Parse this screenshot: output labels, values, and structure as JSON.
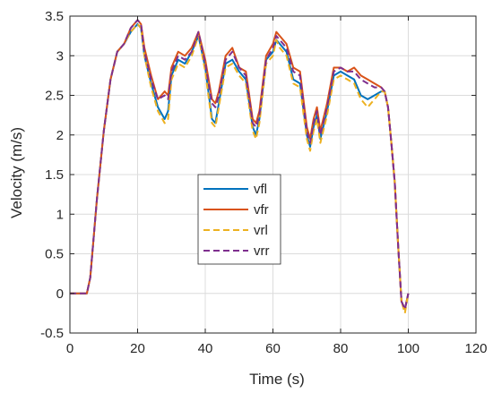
{
  "chart_data": {
    "type": "line",
    "xlabel": "Time (s)",
    "ylabel": "Velocity (m/s)",
    "xlim": [
      0,
      120
    ],
    "ylim": [
      -0.5,
      3.5
    ],
    "xticks": [
      0,
      20,
      40,
      60,
      80,
      100,
      120
    ],
    "yticks": [
      -0.5,
      0,
      0.5,
      1,
      1.5,
      2,
      2.5,
      3,
      3.5
    ],
    "xtick_labels": [
      "0",
      "20",
      "40",
      "60",
      "80",
      "100",
      "120"
    ],
    "ytick_labels": [
      "-0.5",
      "0",
      "0.5",
      "1",
      "1.5",
      "2",
      "2.5",
      "3",
      "3.5"
    ],
    "grid": true,
    "legend_position": "center",
    "x": [
      0,
      5,
      6,
      8,
      10,
      12,
      14,
      16,
      18,
      20,
      21,
      22,
      24,
      26,
      28,
      29,
      30,
      32,
      34,
      36,
      38,
      40,
      42,
      43,
      44,
      46,
      48,
      50,
      52,
      54,
      55,
      56,
      58,
      60,
      61,
      62,
      64,
      66,
      68,
      70,
      71,
      72,
      73,
      74,
      76,
      78,
      80,
      82,
      84,
      86,
      88,
      90,
      92,
      93,
      94,
      95,
      96,
      97,
      98,
      99,
      100
    ],
    "series": [
      {
        "name": "vfl",
        "color": "#0072BD",
        "dash": "solid",
        "values": [
          0,
          0,
          0.2,
          1.2,
          2.05,
          2.7,
          3.05,
          3.15,
          3.3,
          3.4,
          3.35,
          3.0,
          2.65,
          2.35,
          2.2,
          2.3,
          2.75,
          2.95,
          2.9,
          3.05,
          3.25,
          2.85,
          2.2,
          2.15,
          2.4,
          2.9,
          2.95,
          2.8,
          2.7,
          2.1,
          2.0,
          2.2,
          2.95,
          3.05,
          3.2,
          3.15,
          3.05,
          2.7,
          2.65,
          2.0,
          1.85,
          2.1,
          2.25,
          1.95,
          2.3,
          2.75,
          2.8,
          2.75,
          2.7,
          2.5,
          2.45,
          2.5,
          2.55,
          2.55,
          2.35,
          1.9,
          1.4,
          0.6,
          -0.1,
          -0.2,
          0
        ]
      },
      {
        "name": "vfr",
        "color": "#D95319",
        "dash": "solid",
        "values": [
          0,
          0,
          0.2,
          1.2,
          2.05,
          2.7,
          3.05,
          3.15,
          3.35,
          3.45,
          3.4,
          3.1,
          2.75,
          2.45,
          2.55,
          2.5,
          2.85,
          3.05,
          3.0,
          3.1,
          3.3,
          2.95,
          2.45,
          2.4,
          2.55,
          3.0,
          3.1,
          2.85,
          2.8,
          2.2,
          2.15,
          2.3,
          3.0,
          3.15,
          3.3,
          3.25,
          3.15,
          2.85,
          2.8,
          2.1,
          1.95,
          2.2,
          2.35,
          2.05,
          2.4,
          2.85,
          2.85,
          2.8,
          2.85,
          2.75,
          2.7,
          2.65,
          2.6,
          2.55,
          2.35,
          1.9,
          1.4,
          0.6,
          -0.1,
          -0.2,
          0
        ]
      },
      {
        "name": "vrl",
        "color": "#EDB120",
        "dash": "dashed",
        "values": [
          0,
          0,
          0.2,
          1.2,
          2.05,
          2.7,
          3.05,
          3.15,
          3.3,
          3.4,
          3.35,
          3.0,
          2.6,
          2.3,
          2.15,
          2.2,
          2.7,
          2.9,
          2.85,
          3.0,
          3.25,
          2.8,
          2.15,
          2.1,
          2.35,
          2.85,
          2.9,
          2.75,
          2.65,
          2.05,
          1.95,
          2.15,
          2.9,
          3.0,
          3.2,
          3.1,
          3.0,
          2.65,
          2.6,
          1.95,
          1.8,
          2.05,
          2.2,
          1.9,
          2.25,
          2.7,
          2.75,
          2.7,
          2.65,
          2.45,
          2.35,
          2.45,
          2.55,
          2.55,
          2.35,
          1.9,
          1.4,
          0.6,
          -0.1,
          -0.25,
          0
        ]
      },
      {
        "name": "vrr",
        "color": "#7E2F8E",
        "dash": "dashed",
        "values": [
          0,
          0,
          0.2,
          1.2,
          2.05,
          2.7,
          3.05,
          3.15,
          3.35,
          3.45,
          3.4,
          3.05,
          2.7,
          2.45,
          2.5,
          2.45,
          2.8,
          3.0,
          2.95,
          3.05,
          3.3,
          2.9,
          2.4,
          2.35,
          2.5,
          2.95,
          3.05,
          2.85,
          2.75,
          2.15,
          2.1,
          2.25,
          2.95,
          3.1,
          3.25,
          3.2,
          3.1,
          2.8,
          2.75,
          2.05,
          1.9,
          2.15,
          2.3,
          2.0,
          2.35,
          2.8,
          2.85,
          2.8,
          2.8,
          2.7,
          2.65,
          2.6,
          2.6,
          2.55,
          2.35,
          1.9,
          1.4,
          0.6,
          -0.1,
          -0.2,
          0
        ]
      }
    ]
  }
}
